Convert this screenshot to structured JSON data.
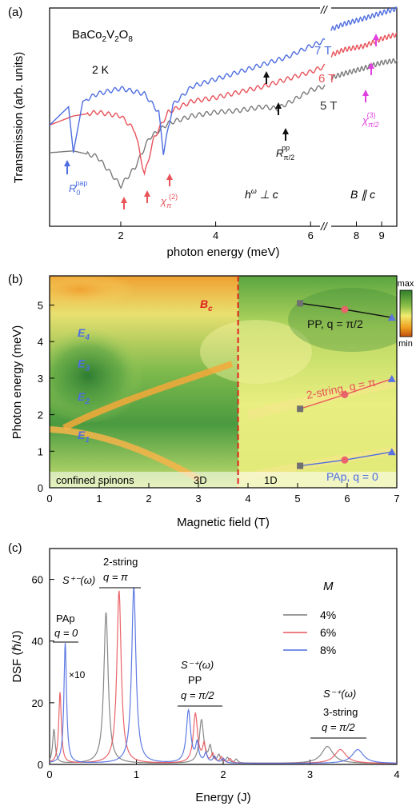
{
  "colors": {
    "gray": "#7a7a7a",
    "red": "#e8535a",
    "blue": "#4e6de0",
    "magenta": "#e040e0",
    "black": "#111111",
    "dashed": "#e02020"
  },
  "chart_data": [
    {
      "panel": "(a)",
      "type": "line",
      "material": "BaCo₂V₂O₈",
      "temperature": "2 K",
      "xlabel": "photon energy (meV)",
      "ylabel": "Transmission (arb. units)",
      "x_ticks": [
        "2",
        "4",
        "6",
        "8",
        "9"
      ],
      "broken_x_axis": true,
      "series": [
        {
          "name": "5 T",
          "color": "gray",
          "x": [
            0.5,
            1.0,
            1.5,
            2.0,
            2.3,
            2.6,
            3.0,
            3.5,
            4.0,
            4.5,
            5.0,
            5.3,
            5.6,
            6.0,
            6.8,
            7.5,
            8.3,
            9.0,
            9.5
          ],
          "y": [
            0.4,
            0.41,
            0.38,
            0.22,
            0.32,
            0.48,
            0.56,
            0.6,
            0.62,
            0.63,
            0.65,
            0.64,
            0.68,
            0.74,
            0.8,
            0.83,
            0.86,
            0.89,
            0.9
          ]
        },
        {
          "name": "6 T",
          "color": "red",
          "x": [
            0.5,
            1.0,
            1.5,
            2.0,
            2.3,
            2.5,
            2.7,
            3.0,
            3.5,
            4.0,
            4.5,
            5.0,
            5.5,
            6.0,
            6.8,
            7.5,
            8.3,
            9.0,
            9.5
          ],
          "y": [
            0.55,
            0.6,
            0.62,
            0.6,
            0.52,
            0.28,
            0.48,
            0.62,
            0.68,
            0.7,
            0.73,
            0.76,
            0.8,
            0.84,
            0.92,
            0.96,
            0.98,
            1.02,
            1.04
          ]
        },
        {
          "name": "7 T",
          "color": "blue",
          "x": [
            0.5,
            0.9,
            1.0,
            1.2,
            1.5,
            2.0,
            2.5,
            2.8,
            2.9,
            3.1,
            3.5,
            4.0,
            4.5,
            5.0,
            5.5,
            6.0,
            6.8,
            7.5,
            8.3,
            9.0,
            9.5
          ],
          "y": [
            0.55,
            0.65,
            0.4,
            0.68,
            0.72,
            0.75,
            0.72,
            0.62,
            0.4,
            0.66,
            0.76,
            0.8,
            0.84,
            0.88,
            0.92,
            0.98,
            1.06,
            1.1,
            1.13,
            1.16,
            1.18
          ]
        }
      ],
      "annotations": [
        "7 T",
        "6 T",
        "5 T",
        "R₀^pap",
        "χπ^(2)",
        "Rπ/2^pp",
        "χπ/2^(3)",
        "hω ⊥ c",
        "B ∥ c"
      ]
    },
    {
      "panel": "(b)",
      "type": "heatmap",
      "xlabel": "Magnetic field (T)",
      "ylabel": "Photon energy (meV)",
      "xlim": [
        0,
        7
      ],
      "ylim": [
        0,
        5.8
      ],
      "x_ticks": [
        "0",
        "1",
        "2",
        "3",
        "4",
        "5",
        "6",
        "7"
      ],
      "y_ticks": [
        "0",
        "1",
        "2",
        "3",
        "4",
        "5"
      ],
      "colorbar": {
        "max": "max",
        "min": "min"
      },
      "critical_field_label": "B",
      "critical_field_sub": "c",
      "critical_field_T": 3.8,
      "region_labels": {
        "confined": "confined spinons",
        "three_d": "3D",
        "one_d": "1D"
      },
      "mode_labels": [
        {
          "text": "E",
          "sub": "4",
          "y": 4.25
        },
        {
          "text": "E",
          "sub": "3",
          "y": 3.4
        },
        {
          "text": "E",
          "sub": "2",
          "y": 2.5
        },
        {
          "text": "E",
          "sub": "1",
          "y": 1.45
        }
      ],
      "lines": [
        {
          "name": "PP, q = π/2",
          "color": "black",
          "points": [
            [
              5.05,
              5.05
            ],
            [
              5.95,
              4.88
            ],
            [
              6.9,
              4.66
            ]
          ]
        },
        {
          "name": "2-string, q = π",
          "color": "red",
          "points": [
            [
              5.05,
              2.16
            ],
            [
              5.95,
              2.55
            ],
            [
              6.9,
              2.98
            ]
          ]
        },
        {
          "name": "PAp, q = 0",
          "color": "blue",
          "points": [
            [
              5.05,
              0.6
            ],
            [
              5.95,
              0.76
            ],
            [
              6.9,
              0.98
            ]
          ]
        }
      ]
    },
    {
      "panel": "(c)",
      "type": "line",
      "xlabel": "Energy (J)",
      "ylabel": "DSF (ℏ/J)",
      "xlim": [
        0,
        4
      ],
      "ylim": [
        0,
        70
      ],
      "x_ticks": [
        "0",
        "1",
        "2",
        "3",
        "4"
      ],
      "y_ticks": [
        "0",
        "20",
        "40",
        "60"
      ],
      "legend_title": "M",
      "legend_placement": "top-right",
      "series": [
        {
          "name": "4%",
          "color": "gray",
          "peaks": [
            [
              0.05,
              11
            ],
            [
              0.65,
              49
            ],
            [
              1.75,
              14
            ],
            [
              3.2,
              5.5
            ]
          ]
        },
        {
          "name": "6%",
          "color": "red",
          "peaks": [
            [
              0.12,
              23
            ],
            [
              0.8,
              56
            ],
            [
              1.68,
              16
            ],
            [
              3.35,
              4.5
            ]
          ]
        },
        {
          "name": "8%",
          "color": "blue",
          "peaks": [
            [
              0.18,
              39
            ],
            [
              0.97,
              57
            ],
            [
              1.6,
              17
            ],
            [
              3.55,
              4.5
            ]
          ]
        }
      ],
      "annotations": {
        "pap": [
          "PAp",
          "q = 0",
          "×10"
        ],
        "two_string": [
          "2-string",
          "q = π"
        ],
        "s_pm_1": "S⁺⁻(ω)",
        "s_mp_2": "S⁻⁺(ω)",
        "pp": [
          "PP",
          "q = π/2"
        ],
        "s_mp_3": "S⁻⁺(ω)",
        "three_string": [
          "3-string",
          "q = π/2"
        ]
      }
    }
  ],
  "panel_labels": [
    "(a)",
    "(b)",
    "(c)"
  ]
}
